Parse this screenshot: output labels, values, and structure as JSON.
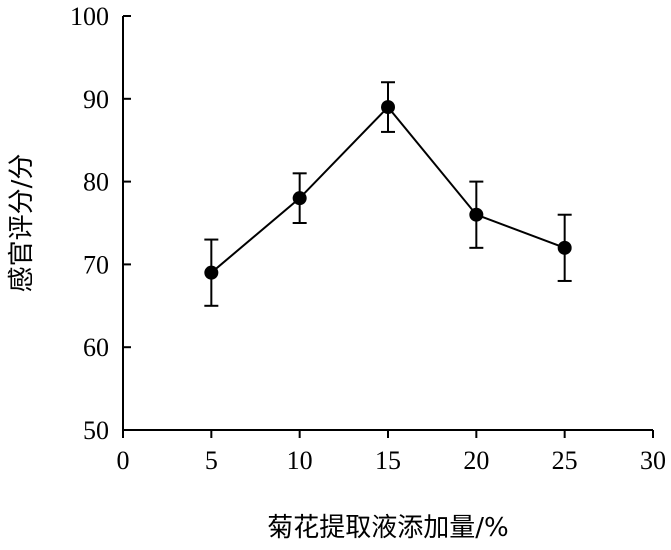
{
  "chart_data": {
    "type": "line",
    "xlabel": "菊花提取液添加量/%",
    "ylabel": "感官评分/分",
    "xlim": [
      0,
      30
    ],
    "ylim": [
      50,
      100
    ],
    "xticks": [
      0,
      5,
      10,
      15,
      20,
      25,
      30
    ],
    "yticks": [
      50,
      60,
      70,
      80,
      90,
      100
    ],
    "grid": false,
    "series": [
      {
        "x": [
          5,
          10,
          15,
          20,
          25
        ],
        "y": [
          69,
          78,
          89,
          76,
          72
        ],
        "error": [
          4,
          3,
          3,
          4,
          4
        ],
        "color": "#000000",
        "marker": "circle"
      }
    ]
  }
}
